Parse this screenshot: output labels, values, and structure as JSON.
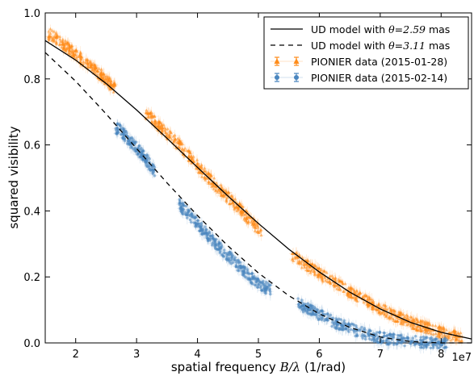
{
  "chart_data": {
    "type": "scatter",
    "title": "",
    "xlabel_prefix": "spatial frequency ",
    "xlabel_math": "B/λ",
    "xlabel_suffix": " (1/rad)",
    "ylabel": "squared visibility",
    "x_offset_label": "1e7",
    "xlim": [
      1.5,
      8.5
    ],
    "ylim": [
      0.0,
      1.0
    ],
    "x_ticks": [
      2,
      3,
      4,
      5,
      6,
      7,
      8
    ],
    "y_ticks": [
      0.0,
      0.2,
      0.4,
      0.6,
      0.8,
      1.0
    ],
    "x_tick_labels": [
      "2",
      "3",
      "4",
      "5",
      "6",
      "7",
      "8"
    ],
    "y_tick_labels": [
      "0.0",
      "0.2",
      "0.4",
      "0.6",
      "0.8",
      "1.0"
    ],
    "grid": false,
    "legend_position": "top-right",
    "x_unit_scale": "1e7",
    "colors": {
      "orange": "#ff8c1a",
      "blue": "#4a86bf",
      "model": "#000000"
    },
    "series": [
      {
        "name": "UD model with θ=2.59 mas",
        "legend_prefix": "UD model with ",
        "legend_math": "θ=2.59",
        "legend_suffix": " mas",
        "kind": "line",
        "style": "solid",
        "theta_mas": 2.59,
        "x": [
          1.5,
          2.0,
          2.5,
          3.0,
          3.5,
          4.0,
          4.5,
          5.0,
          5.5,
          6.0,
          6.5,
          7.0,
          7.5,
          8.0,
          8.5
        ],
        "y": [
          0.916,
          0.857,
          0.786,
          0.706,
          0.62,
          0.532,
          0.445,
          0.362,
          0.284,
          0.215,
          0.154,
          0.103,
          0.062,
          0.032,
          0.012
        ]
      },
      {
        "name": "UD model with θ=3.11 mas",
        "legend_prefix": "UD model with ",
        "legend_math": "θ=3.11",
        "legend_suffix": " mas",
        "kind": "line",
        "style": "dashed",
        "theta_mas": 3.11,
        "x": [
          1.5,
          2.0,
          2.5,
          3.0,
          3.5,
          4.0,
          4.5,
          5.0,
          5.5,
          6.0,
          6.5,
          7.0,
          7.5,
          8.0,
          8.5
        ],
        "y": [
          0.88,
          0.793,
          0.694,
          0.589,
          0.485,
          0.386,
          0.294,
          0.212,
          0.143,
          0.088,
          0.047,
          0.018,
          0.004,
          0.0,
          0.0
        ]
      },
      {
        "name": "PIONIER data (2015-01-28)",
        "kind": "points",
        "color": "orange",
        "x": [
          1.6,
          1.8,
          2.0,
          2.2,
          2.4,
          2.6,
          3.2,
          3.5,
          3.8,
          4.1,
          4.4,
          4.7,
          5.0,
          5.5,
          6.0,
          6.5,
          7.0,
          7.5,
          8.0,
          8.3
        ],
        "y": [
          0.935,
          0.905,
          0.875,
          0.845,
          0.815,
          0.78,
          0.69,
          0.635,
          0.58,
          0.515,
          0.46,
          0.405,
          0.345,
          0.272,
          0.21,
          0.155,
          0.103,
          0.062,
          0.032,
          0.018
        ]
      },
      {
        "name": "PIONIER data (2015-02-14)",
        "kind": "points",
        "color": "blue",
        "x": [
          2.7,
          2.9,
          3.1,
          3.3,
          3.5,
          3.7,
          3.9,
          4.1,
          4.3,
          4.5,
          4.7,
          4.9,
          5.1,
          5.3,
          5.7,
          6.0,
          6.3,
          6.6,
          6.9,
          7.2,
          7.5,
          7.8,
          8.1
        ],
        "y": [
          0.65,
          0.61,
          0.57,
          0.52,
          0.47,
          0.42,
          0.38,
          0.34,
          0.3,
          0.265,
          0.23,
          0.195,
          0.17,
          0.15,
          0.115,
          0.085,
          0.058,
          0.037,
          0.02,
          0.01,
          0.004,
          0.001,
          0.0
        ]
      }
    ]
  }
}
